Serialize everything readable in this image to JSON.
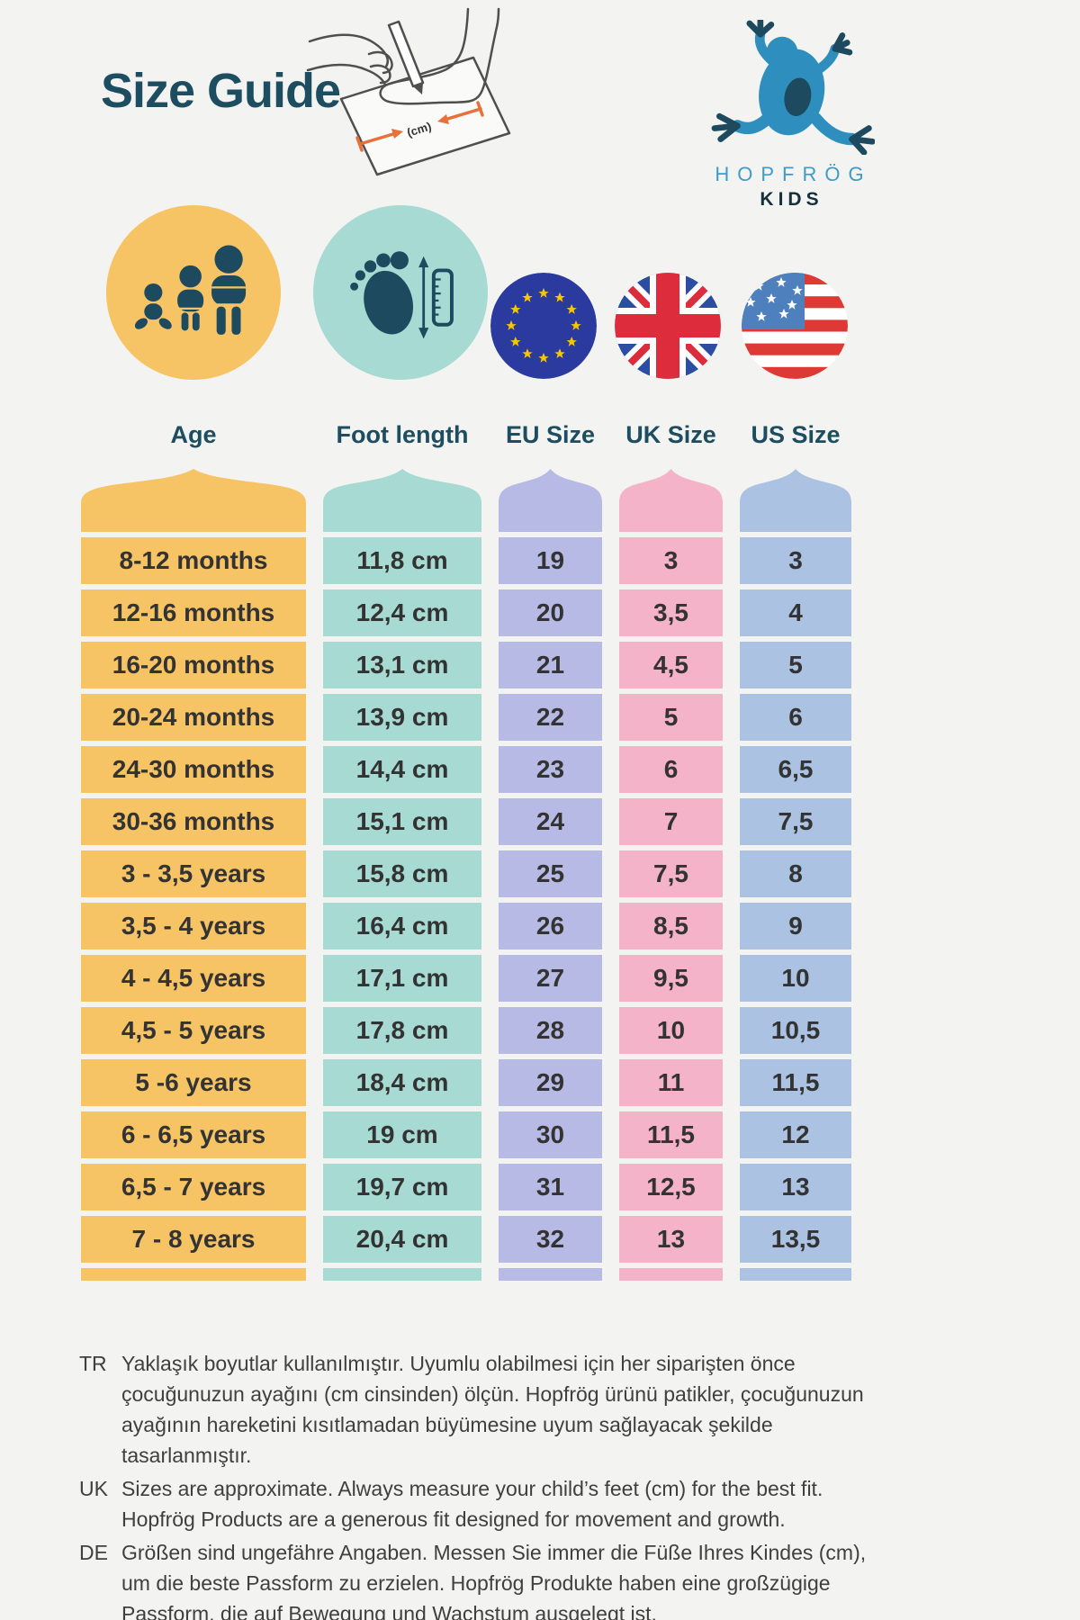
{
  "palette": {
    "background": "#f3f3f1",
    "title_teal": "#1d4d60",
    "icon_dark_teal": "#1d4a5e",
    "logo_blue": "#2e8fbe",
    "logo_text_blue": "#3e9cc8",
    "logo_text_dark": "#15303d",
    "age_yellow": "#f7c465",
    "foot_teal": "#a7dad3",
    "eu_lavender": "#b7bae4",
    "uk_pink": "#f4b3c8",
    "us_blue": "#abc2e2",
    "eu_flag_blue": "#2b3a9f",
    "flag_star_gold": "#f8c600",
    "uk_flag_blue": "#2b4ea3",
    "flag_red": "#dd2c3c",
    "us_canton_blue": "#4d80bd",
    "arrow_orange": "#e8703a",
    "cell_text": "#333333",
    "note_text": "#3f3f3f"
  },
  "header": {
    "title": "Size Guide",
    "illustration_caption": "(cm)"
  },
  "logo": {
    "brand": "HOPFRÖG",
    "sub": "KIDS"
  },
  "columns": [
    {
      "key": "age",
      "label": "Age",
      "color": "#f7c465",
      "icon": "family-icon"
    },
    {
      "key": "foot",
      "label": "Foot length",
      "color": "#a7dad3",
      "icon": "foot-ruler-icon"
    },
    {
      "key": "eu",
      "label": "EU Size",
      "color": "#b7bae4",
      "icon": "eu-flag-icon"
    },
    {
      "key": "uk",
      "label": "UK Size",
      "color": "#f4b3c8",
      "icon": "uk-flag-icon"
    },
    {
      "key": "us",
      "label": "US Size",
      "color": "#abc2e2",
      "icon": "us-flag-icon"
    }
  ],
  "rows": [
    {
      "age": "8-12 months",
      "foot": "11,8 cm",
      "eu": "19",
      "uk": "3",
      "us": "3"
    },
    {
      "age": "12-16 months",
      "foot": "12,4 cm",
      "eu": "20",
      "uk": "3,5",
      "us": "4"
    },
    {
      "age": "16-20 months",
      "foot": "13,1 cm",
      "eu": "21",
      "uk": "4,5",
      "us": "5"
    },
    {
      "age": "20-24 months",
      "foot": "13,9 cm",
      "eu": "22",
      "uk": "5",
      "us": "6"
    },
    {
      "age": "24-30 months",
      "foot": "14,4 cm",
      "eu": "23",
      "uk": "6",
      "us": "6,5"
    },
    {
      "age": "30-36 months",
      "foot": "15,1 cm",
      "eu": "24",
      "uk": "7",
      "us": "7,5"
    },
    {
      "age": "3 - 3,5 years",
      "foot": "15,8 cm",
      "eu": "25",
      "uk": "7,5",
      "us": "8"
    },
    {
      "age": "3,5 - 4 years",
      "foot": "16,4 cm",
      "eu": "26",
      "uk": "8,5",
      "us": "9"
    },
    {
      "age": "4 - 4,5 years",
      "foot": "17,1 cm",
      "eu": "27",
      "uk": "9,5",
      "us": "10"
    },
    {
      "age": "4,5 - 5 years",
      "foot": "17,8 cm",
      "eu": "28",
      "uk": "10",
      "us": "10,5"
    },
    {
      "age": "5 -6 years",
      "foot": "18,4 cm",
      "eu": "29",
      "uk": "11",
      "us": "11,5"
    },
    {
      "age": "6 - 6,5 years",
      "foot": "19 cm",
      "eu": "30",
      "uk": "11,5",
      "us": "12"
    },
    {
      "age": "6,5 - 7 years",
      "foot": "19,7 cm",
      "eu": "31",
      "uk": "12,5",
      "us": "13"
    },
    {
      "age": "7 - 8 years",
      "foot": "20,4 cm",
      "eu": "32",
      "uk": "13",
      "us": "13,5"
    }
  ],
  "notes": [
    {
      "lang": "TR",
      "text": "Yaklaşık boyutlar kullanılmıştır. Uyumlu olabilmesi için her siparişten önce çocuğunuzun ayağını (cm cinsinden) ölçün. Hopfrög ürünü patikler, çocuğunuzun ayağının hareketini kısıtlamadan büyümesine uyum sağlayacak şekilde tasarlanmıştır."
    },
    {
      "lang": "UK",
      "text": "Sizes are approximate. Always measure your child’s feet (cm) for the best fit. Hopfrög Products are a generous fit designed for movement and growth."
    },
    {
      "lang": "DE",
      "text": "Größen sind ungefähre Angaben. Messen Sie immer die Füße Ihres Kindes (cm), um die beste Passform zu erzielen. Hopfrög Produkte haben eine großzügige Passform, die auf Bewegung und Wachstum ausgelegt ist."
    }
  ]
}
